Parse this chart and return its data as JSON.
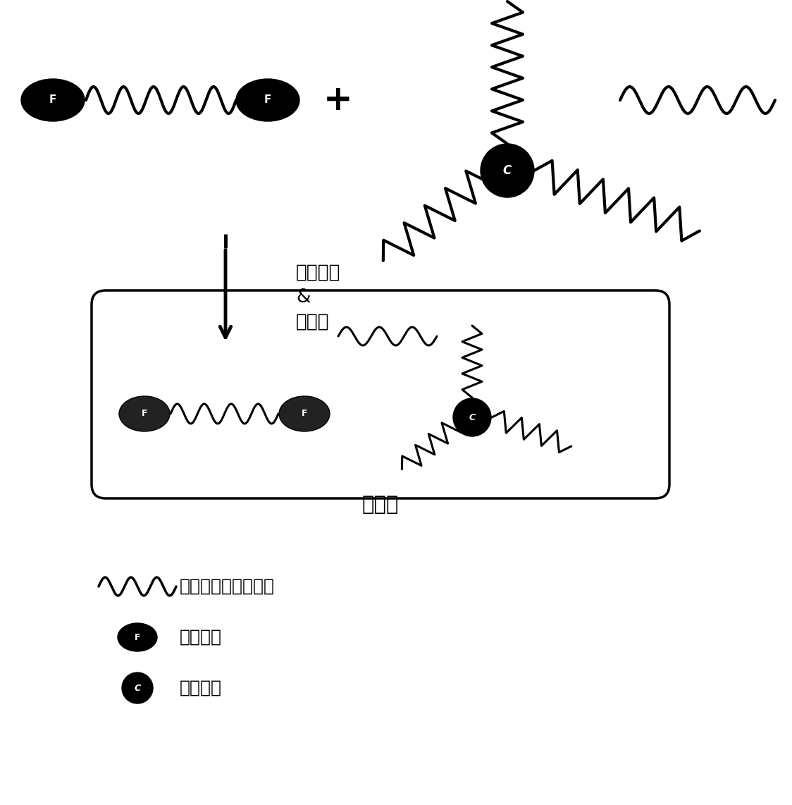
{
  "bg_color": "#ffffff",
  "text_color": "#000000",
  "label_line1": "溶液共混",
  "label_line2": "&",
  "label_line3": "固体化",
  "label_result": "双改性",
  "legend_wave_text": "：溶液苯乙烯丁二烯",
  "legend_F_text": "：官能团",
  "legend_C_text": "：偶联剂"
}
